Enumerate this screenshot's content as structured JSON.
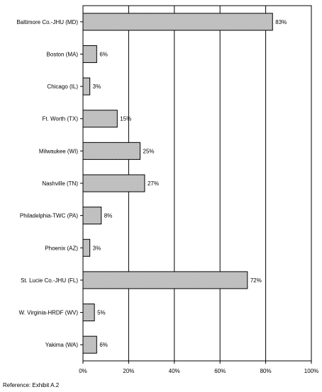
{
  "chart_data": {
    "type": "bar",
    "orientation": "horizontal",
    "categories": [
      "Baltimore Co.-JHU (MD)",
      "Boston (MA)",
      "Chicago (IL)",
      "Ft. Worth (TX)",
      "Milwaukee (WI)",
      "Nashville (TN)",
      "Philadelphia-TWC (PA)",
      "Phoenix (AZ)",
      "St. Lucie Co.-JHU (FL)",
      "W. Virginia-HRDF (WV)",
      "Yakima (WA)"
    ],
    "values": [
      83,
      6,
      3,
      15,
      25,
      27,
      8,
      3,
      72,
      5,
      6
    ],
    "value_labels": [
      "83%",
      "6%",
      "3%",
      "15%",
      "25%",
      "27%",
      "8%",
      "3%",
      "72%",
      "5%",
      "6%"
    ],
    "x_ticks": [
      "0%",
      "20%",
      "40%",
      "60%",
      "80%",
      "100%"
    ],
    "xlim": [
      0,
      100
    ],
    "grid": "vertical",
    "title": "",
    "xlabel": "",
    "ylabel": "",
    "bar_fill": "#d9d9d9",
    "stroke_color": "#000000"
  },
  "footer": {
    "reference": "Reference: Exhibit A.2"
  }
}
